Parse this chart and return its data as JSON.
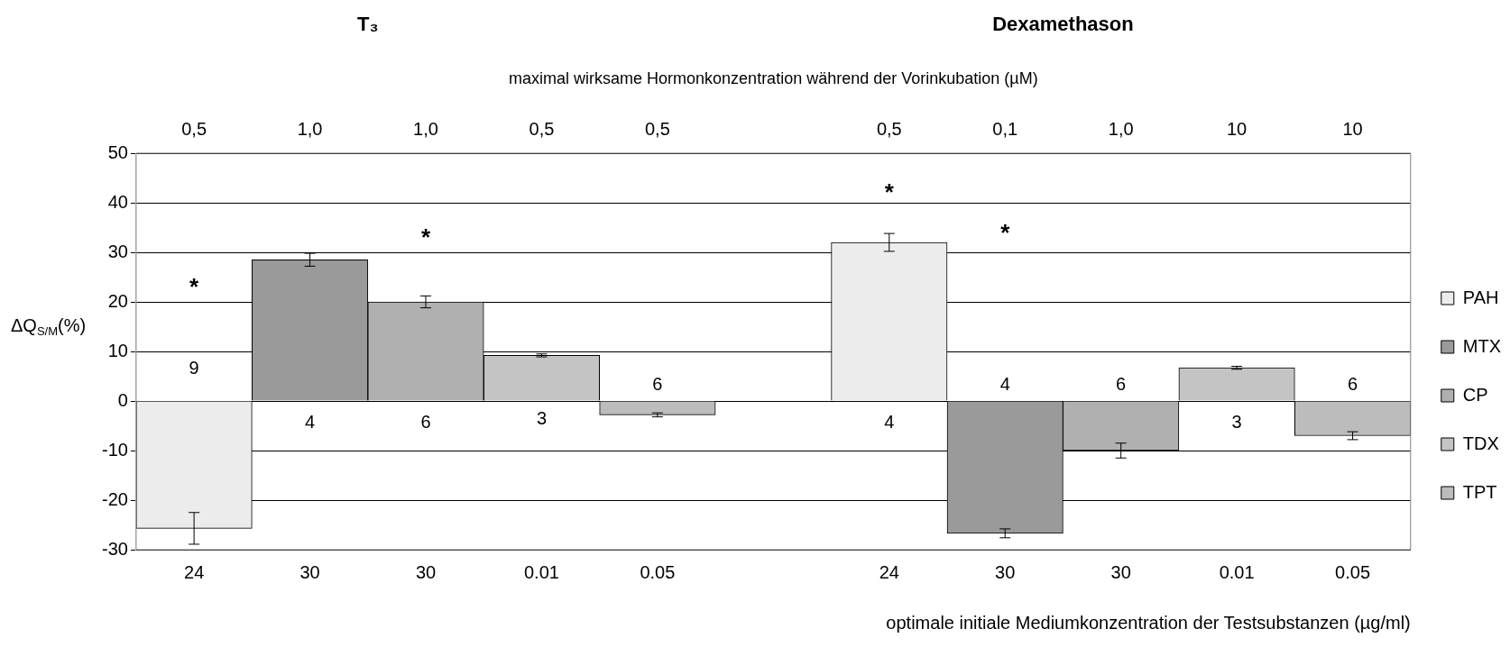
{
  "chart_data": {
    "type": "bar",
    "stacked": true,
    "subtitle": "maximal wirksame Hormonkonzentration während der Vorinkubation (µM)",
    "xlabel": "optimale initiale Mediumkonzentration der Testsubstanzen (µg/ml)",
    "ylabel": "ΔQ$_{S/M}$(%)",
    "categories": [
      "24",
      "30",
      "30",
      "0.01",
      "0.05",
      null,
      "24",
      "30",
      "30",
      "0.01",
      "0.05"
    ],
    "series": [
      {
        "name": "PAH",
        "color": "#ececec",
        "values": [
          -25.7,
          null,
          null,
          null,
          null,
          null,
          32,
          null,
          null,
          null,
          null
        ],
        "errors": [
          3.2,
          null,
          null,
          null,
          null,
          null,
          1.8,
          null,
          null,
          null,
          null
        ]
      },
      {
        "name": "MTX",
        "color": "#9a9a9a",
        "values": [
          null,
          28.5,
          null,
          null,
          null,
          null,
          null,
          -26.7,
          null,
          null,
          null
        ],
        "errors": [
          null,
          1.3,
          null,
          null,
          null,
          null,
          null,
          0.9,
          null,
          null,
          null
        ]
      },
      {
        "name": "CP",
        "color": "#b0b0b0",
        "values": [
          null,
          null,
          20,
          null,
          null,
          null,
          null,
          null,
          -10,
          null,
          null
        ],
        "errors": [
          null,
          null,
          1.2,
          null,
          null,
          null,
          null,
          null,
          1.5,
          null,
          null
        ]
      },
      {
        "name": "TDX",
        "color": "#c4c4c4",
        "values": [
          null,
          null,
          null,
          9.2,
          null,
          null,
          null,
          null,
          null,
          6.7,
          null
        ],
        "errors": [
          null,
          null,
          null,
          0.3,
          null,
          null,
          null,
          null,
          null,
          0.3,
          null
        ]
      },
      {
        "name": "TPT",
        "color": "#bcbcbc",
        "values": [
          null,
          null,
          null,
          null,
          -2.8,
          null,
          null,
          null,
          null,
          null,
          -7
        ],
        "errors": [
          null,
          null,
          null,
          null,
          0.4,
          null,
          null,
          null,
          null,
          null,
          0.8
        ]
      }
    ],
    "ylim": [
      -30,
      50
    ],
    "yticks": [
      -30,
      -20,
      -10,
      0,
      10,
      20,
      30,
      40,
      50
    ],
    "grid": "y",
    "legend": "right",
    "annotations": [
      "T₃",
      "Dexamethason",
      "0,5",
      "1,0",
      "1,0",
      "0,5",
      "0,5",
      "0,5",
      "0,1",
      "1,0",
      "10",
      "10",
      "9",
      "4",
      "6",
      "3",
      "6",
      "4",
      "4",
      "6",
      "3",
      "6",
      "*",
      "*",
      "*",
      "*"
    ]
  }
}
